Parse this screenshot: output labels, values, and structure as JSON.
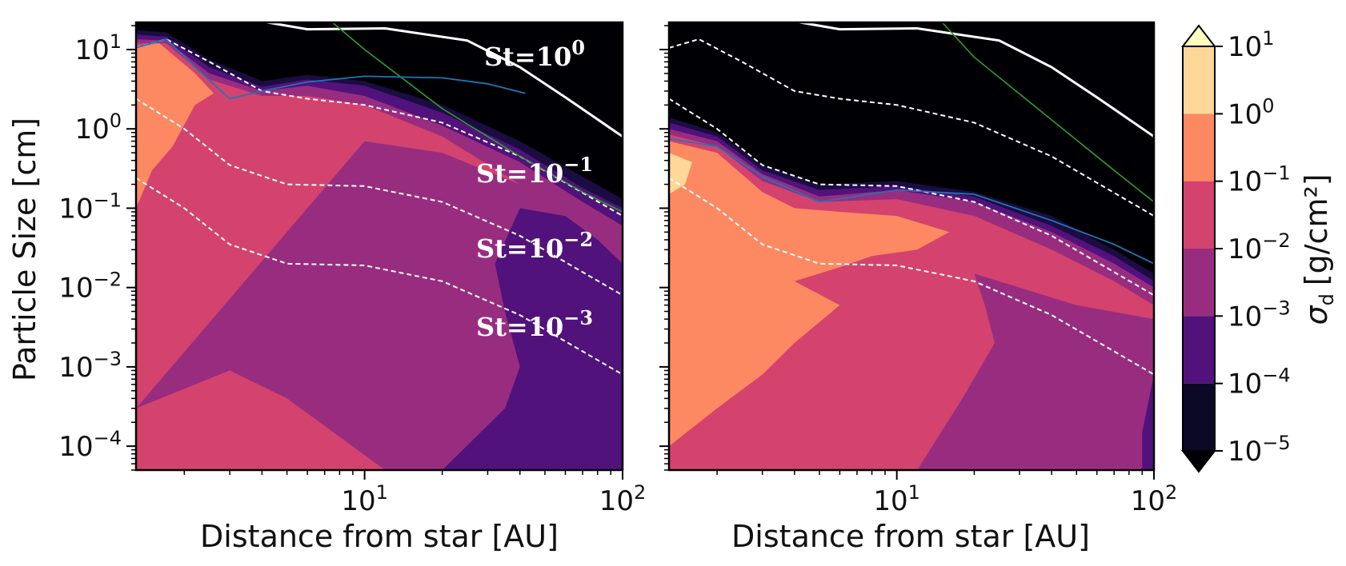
{
  "chart_data": {
    "type": "contourf",
    "xlabel": "Distance from star [AU]",
    "ylabel": "Particle Size [cm]",
    "xscale": "log",
    "yscale": "log",
    "xlim": [
      1.3,
      100
    ],
    "ylim": [
      5e-05,
      22
    ],
    "x_ticks": [
      {
        "base": "10",
        "exp": "1",
        "value": 10
      },
      {
        "base": "10",
        "exp": "2",
        "value": 100
      }
    ],
    "y_ticks": [
      {
        "base": "10",
        "exp": "1",
        "value": 10
      },
      {
        "base": "10",
        "exp": "0",
        "value": 1
      },
      {
        "base": "10",
        "exp": "−1",
        "value": 0.1
      },
      {
        "base": "10",
        "exp": "−2",
        "value": 0.01
      },
      {
        "base": "10",
        "exp": "−3",
        "value": 0.001
      },
      {
        "base": "10",
        "exp": "−4",
        "value": 0.0001
      }
    ],
    "colorbar": {
      "label": "σ",
      "label_sub": "d",
      "label_units": "[g/cm²]",
      "extend": "both",
      "levels": [
        {
          "base": "10",
          "exp": "1",
          "value": 10
        },
        {
          "base": "10",
          "exp": "0",
          "value": 1
        },
        {
          "base": "10",
          "exp": "−1",
          "value": 0.1
        },
        {
          "base": "10",
          "exp": "−2",
          "value": 0.01
        },
        {
          "base": "10",
          "exp": "−3",
          "value": 0.001
        },
        {
          "base": "10",
          "exp": "−4",
          "value": 0.0001
        },
        {
          "base": "10",
          "exp": "−5",
          "value": 1e-05
        }
      ],
      "colors": [
        "#fcfdbf",
        "#fed799",
        "#fc8961",
        "#d3436e",
        "#982d80",
        "#51127c",
        "#0c0927",
        "#000004"
      ]
    },
    "st_labels": [
      {
        "text": "St=10",
        "exp": "0",
        "value": 1
      },
      {
        "text": "St=10",
        "exp": "−1",
        "value": 0.1
      },
      {
        "text": "St=10",
        "exp": "−2",
        "value": 0.01
      },
      {
        "text": "St=10",
        "exp": "−3",
        "value": 0.001
      }
    ],
    "panels": [
      {
        "name": "left",
        "blue_line": [
          [
            1.3,
            10.5
          ],
          [
            1.7,
            13.5
          ],
          [
            2.2,
            6
          ],
          [
            3,
            2.4
          ],
          [
            4,
            3.0
          ],
          [
            6,
            3.9
          ],
          [
            10,
            4.6
          ],
          [
            20,
            4.4
          ],
          [
            30,
            3.7
          ],
          [
            42,
            2.8
          ]
        ],
        "green_line": [
          [
            7.5,
            22
          ],
          [
            10,
            10
          ],
          [
            20,
            1.8
          ],
          [
            40,
            0.45
          ],
          [
            70,
            0.16
          ],
          [
            100,
            0.09
          ]
        ],
        "st1_line": [
          [
            4.2,
            22
          ],
          [
            6,
            18
          ],
          [
            12,
            18.5
          ],
          [
            25,
            13
          ],
          [
            40,
            6
          ],
          [
            60,
            2.5
          ],
          [
            100,
            0.8
          ]
        ],
        "st_dashed": [
          [
            [
              1.3,
              10.5
            ],
            [
              1.7,
              13.5
            ],
            [
              2.5,
              7
            ],
            [
              4,
              3.0
            ],
            [
              6,
              2.4
            ],
            [
              10,
              2.0
            ],
            [
              20,
              1.2
            ],
            [
              40,
              0.45
            ],
            [
              100,
              0.08
            ]
          ],
          [
            [
              1.3,
              2.4
            ],
            [
              2,
              1.0
            ],
            [
              3,
              0.35
            ],
            [
              5,
              0.2
            ],
            [
              10,
              0.19
            ],
            [
              20,
              0.12
            ],
            [
              40,
              0.045
            ],
            [
              100,
              0.008
            ]
          ],
          [
            [
              1.3,
              0.24
            ],
            [
              2,
              0.1
            ],
            [
              3,
              0.035
            ],
            [
              5,
              0.02
            ],
            [
              10,
              0.019
            ],
            [
              20,
              0.012
            ],
            [
              40,
              0.0045
            ],
            [
              100,
              0.0008
            ]
          ]
        ],
        "contours": [
          {
            "level": 1e-05,
            "color": "#1b0c41",
            "pts": [
              [
                1.3,
                17.5
              ],
              [
                1.7,
                16.5
              ],
              [
                2.5,
                7.5
              ],
              [
                4,
                4.0
              ],
              [
                6,
                4.8
              ],
              [
                10,
                4.0
              ],
              [
                20,
                2.0
              ],
              [
                40,
                0.7
              ],
              [
                70,
                0.25
              ],
              [
                100,
                0.13
              ]
            ]
          },
          {
            "level": 0.0001,
            "color": "#51127c",
            "pts": [
              [
                1.3,
                15.5
              ],
              [
                1.7,
                14.5
              ],
              [
                2.5,
                6.0
              ],
              [
                4,
                3.4
              ],
              [
                6,
                4.2
              ],
              [
                10,
                3.5
              ],
              [
                20,
                1.6
              ],
              [
                40,
                0.55
              ],
              [
                70,
                0.18
              ],
              [
                100,
                0.1
              ]
            ]
          },
          {
            "level": 0.001,
            "color": "#982d80",
            "pts": [
              [
                1.3,
                13.5
              ],
              [
                1.7,
                13
              ],
              [
                2.5,
                5.0
              ],
              [
                4,
                3.0
              ],
              [
                6,
                3.5
              ],
              [
                10,
                2.6
              ],
              [
                20,
                1.1
              ],
              [
                40,
                0.38
              ],
              [
                70,
                0.12
              ],
              [
                100,
                0.06
              ]
            ]
          },
          {
            "level": 0.01,
            "color": "#d3436e",
            "pts": [
              [
                1.3,
                12
              ],
              [
                1.7,
                12
              ],
              [
                2.5,
                4.2
              ],
              [
                4,
                2.6
              ],
              [
                6,
                2.6
              ],
              [
                10,
                2.0
              ],
              [
                20,
                0.8
              ],
              [
                40,
                0.2
              ],
              [
                60,
                0.06
              ],
              [
                80,
                0.02
              ],
              [
                100,
                0.012
              ]
            ]
          },
          {
            "level": 0.1,
            "color": "#fc8961",
            "pts": [
              [
                1.3,
                11
              ],
              [
                1.6,
                12
              ],
              [
                2.2,
                5.0
              ],
              [
                2.6,
                2.8
              ],
              [
                2.2,
                2.0
              ],
              [
                1.8,
                0.6
              ],
              [
                1.5,
                0.3
              ],
              [
                1.3,
                0.1
              ]
            ]
          }
        ],
        "purple_region": [
          [
            10,
            0.7
          ],
          [
            20,
            0.5
          ],
          [
            40,
            0.2
          ],
          [
            70,
            0.05
          ],
          [
            100,
            0.012
          ],
          [
            100,
            5e-05
          ],
          [
            30,
            5e-05
          ],
          [
            12,
            5e-05
          ],
          [
            5,
            0.0004
          ],
          [
            3,
            0.0009
          ],
          [
            1.3,
            0.0003
          ]
        ],
        "dark_region": [
          [
            40,
            0.1
          ],
          [
            60,
            0.08
          ],
          [
            80,
            0.04
          ],
          [
            100,
            0.02
          ],
          [
            100,
            5e-05
          ],
          [
            20,
            5e-05
          ],
          [
            35,
            0.0003
          ],
          [
            40,
            0.001
          ],
          [
            35,
            0.005
          ],
          [
            32,
            0.02
          ]
        ]
      },
      {
        "name": "right",
        "blue_line": [
          [
            1.3,
            0.75
          ],
          [
            2,
            0.6
          ],
          [
            3,
            0.25
          ],
          [
            5,
            0.12
          ],
          [
            10,
            0.17
          ],
          [
            20,
            0.15
          ],
          [
            40,
            0.07
          ],
          [
            70,
            0.035
          ],
          [
            100,
            0.02
          ]
        ],
        "green_line": [
          [
            15,
            22
          ],
          [
            20,
            8
          ],
          [
            40,
            1.3
          ],
          [
            70,
            0.3
          ],
          [
            100,
            0.12
          ]
        ],
        "st1_line": [
          [
            4.2,
            22
          ],
          [
            6,
            18
          ],
          [
            12,
            18.5
          ],
          [
            25,
            13
          ],
          [
            40,
            6
          ],
          [
            60,
            2.5
          ],
          [
            100,
            0.8
          ]
        ],
        "st_dashed": [
          [
            [
              1.3,
              10.5
            ],
            [
              1.7,
              13.5
            ],
            [
              2.5,
              7
            ],
            [
              4,
              3.0
            ],
            [
              6,
              2.4
            ],
            [
              10,
              2.0
            ],
            [
              20,
              1.2
            ],
            [
              40,
              0.45
            ],
            [
              100,
              0.08
            ]
          ],
          [
            [
              1.3,
              2.4
            ],
            [
              2,
              1.0
            ],
            [
              3,
              0.35
            ],
            [
              5,
              0.2
            ],
            [
              10,
              0.19
            ],
            [
              20,
              0.12
            ],
            [
              40,
              0.045
            ],
            [
              100,
              0.008
            ]
          ],
          [
            [
              1.3,
              0.24
            ],
            [
              2,
              0.1
            ],
            [
              3,
              0.035
            ],
            [
              5,
              0.02
            ],
            [
              10,
              0.019
            ],
            [
              20,
              0.012
            ],
            [
              40,
              0.0045
            ],
            [
              100,
              0.0008
            ]
          ]
        ],
        "contours": [
          {
            "level": 1e-05,
            "color": "#1b0c41",
            "pts": [
              [
                1.3,
                1.4
              ],
              [
                2,
                0.9
              ],
              [
                3,
                0.35
              ],
              [
                5,
                0.2
              ],
              [
                10,
                0.22
              ],
              [
                20,
                0.16
              ],
              [
                40,
                0.08
              ],
              [
                70,
                0.03
              ],
              [
                100,
                0.015
              ]
            ]
          },
          {
            "level": 0.0001,
            "color": "#51127c",
            "pts": [
              [
                1.3,
                1.2
              ],
              [
                2,
                0.8
              ],
              [
                3,
                0.3
              ],
              [
                5,
                0.17
              ],
              [
                10,
                0.19
              ],
              [
                20,
                0.14
              ],
              [
                40,
                0.06
              ],
              [
                70,
                0.025
              ],
              [
                100,
                0.012
              ]
            ]
          },
          {
            "level": 0.001,
            "color": "#982d80",
            "pts": [
              [
                1.3,
                1.0
              ],
              [
                2,
                0.7
              ],
              [
                3,
                0.27
              ],
              [
                5,
                0.14
              ],
              [
                10,
                0.17
              ],
              [
                20,
                0.12
              ],
              [
                40,
                0.05
              ],
              [
                70,
                0.02
              ],
              [
                100,
                0.01
              ]
            ]
          },
          {
            "level": 0.01,
            "color": "#d3436e",
            "pts": [
              [
                1.3,
                0.85
              ],
              [
                2,
                0.6
              ],
              [
                3,
                0.22
              ],
              [
                5,
                0.12
              ],
              [
                10,
                0.13
              ],
              [
                20,
                0.08
              ],
              [
                40,
                0.03
              ],
              [
                70,
                0.012
              ],
              [
                100,
                0.006
              ]
            ]
          },
          {
            "level": 0.1,
            "color": "#fc8961",
            "pts": [
              [
                1.3,
                0.7
              ],
              [
                2,
                0.5
              ],
              [
                3,
                0.16
              ],
              [
                4,
                0.1
              ],
              [
                6,
                0.09
              ],
              [
                10,
                0.08
              ],
              [
                16,
                0.05
              ],
              [
                12,
                0.03
              ],
              [
                8,
                0.025
              ],
              [
                6,
                0.018
              ],
              [
                4,
                0.012
              ],
              [
                6,
                0.006
              ],
              [
                4,
                0.002
              ],
              [
                3,
                0.0008
              ],
              [
                2,
                0.0003
              ],
              [
                1.3,
                0.0001
              ]
            ]
          },
          {
            "level": 1,
            "color": "#fed799",
            "pts": [
              [
                1.3,
                0.5
              ],
              [
                1.6,
                0.38
              ],
              [
                1.5,
                0.2
              ],
              [
                1.3,
                0.15
              ]
            ]
          }
        ],
        "purple_region": [
          [
            20,
            0.015
          ],
          [
            30,
            0.01
          ],
          [
            50,
            0.006
          ],
          [
            100,
            0.004
          ],
          [
            100,
            5e-05
          ],
          [
            12,
            5e-05
          ],
          [
            18,
            0.0004
          ],
          [
            24,
            0.002
          ],
          [
            22,
            0.006
          ]
        ],
        "dark_region": [
          [
            100,
            0.0008
          ],
          [
            100,
            5e-05
          ],
          [
            90,
            5e-05
          ],
          [
            90,
            0.00015
          ]
        ]
      }
    ]
  }
}
